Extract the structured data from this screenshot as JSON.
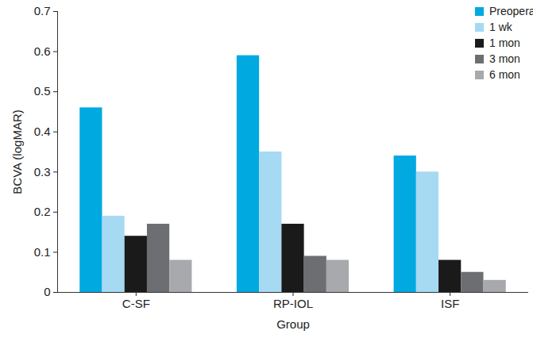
{
  "chart_data": {
    "type": "bar",
    "x_label": "Group",
    "y_label": "BCVA (logMAR)",
    "categories": [
      "C-SF",
      "RP-IOL",
      "ISF"
    ],
    "series": [
      {
        "name": "Preoperative",
        "color": "#00a9e0",
        "values": [
          0.46,
          0.59,
          0.34
        ]
      },
      {
        "name": "1 wk",
        "color": "#a6d9f2",
        "values": [
          0.19,
          0.35,
          0.3
        ]
      },
      {
        "name": "1 mon",
        "color": "#1a1a1a",
        "values": [
          0.14,
          0.17,
          0.08
        ]
      },
      {
        "name": "3 mon",
        "color": "#6d6e71",
        "values": [
          0.17,
          0.09,
          0.05
        ]
      },
      {
        "name": "6 mon",
        "color": "#a7a9ac",
        "values": [
          0.08,
          0.08,
          0.03
        ]
      }
    ],
    "ylim": [
      0,
      0.7
    ],
    "yticks": [
      0,
      0.1,
      0.2,
      0.3,
      0.4,
      0.5,
      0.6,
      0.7
    ],
    "grid": false,
    "legend": "top-right"
  }
}
